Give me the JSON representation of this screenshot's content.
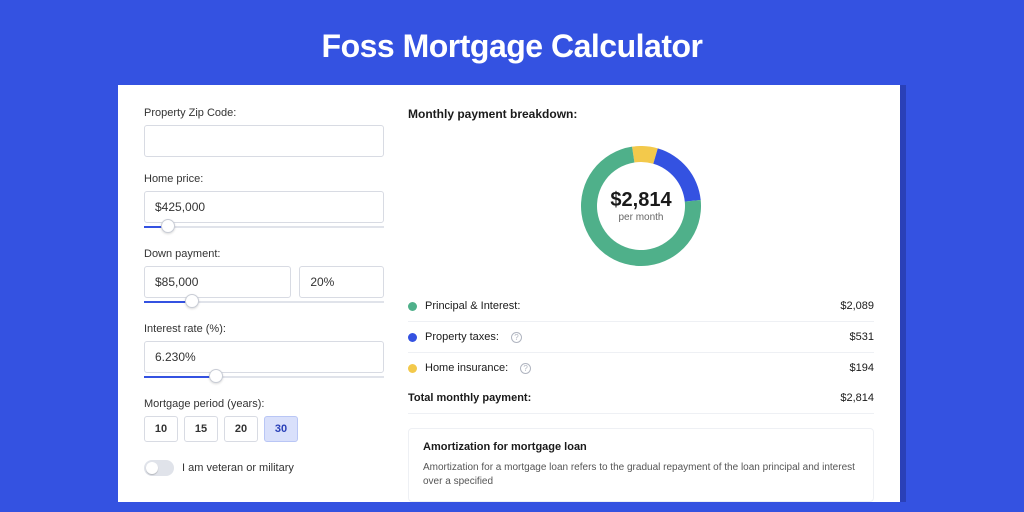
{
  "page": {
    "title": "Foss Mortgage Calculator",
    "background_color": "#3452e1",
    "shadow_color": "#2a40b8",
    "card_color": "#ffffff"
  },
  "form": {
    "zip_label": "Property Zip Code:",
    "zip_value": "",
    "home_price_label": "Home price:",
    "home_price_value": "$425,000",
    "home_price_slider_pct": 10,
    "down_payment_label": "Down payment:",
    "down_payment_value": "$85,000",
    "down_payment_pct": "20%",
    "down_payment_slider_pct": 20,
    "interest_label": "Interest rate (%):",
    "interest_value": "6.230%",
    "interest_slider_pct": 30,
    "period_label": "Mortgage period (years):",
    "periods": [
      "10",
      "15",
      "20",
      "30"
    ],
    "period_selected_index": 3,
    "veteran_label": "I am veteran or military",
    "veteran_on": false
  },
  "breakdown": {
    "title": "Monthly payment breakdown:",
    "center_amount": "$2,814",
    "center_sub": "per month",
    "rows": [
      {
        "label": "Principal & Interest:",
        "value": "$2,089",
        "color": "#4fb08a",
        "info": false
      },
      {
        "label": "Property taxes:",
        "value": "$531",
        "color": "#3452e1",
        "info": true
      },
      {
        "label": "Home insurance:",
        "value": "$194",
        "color": "#f3c94b",
        "info": true
      }
    ],
    "total_label": "Total monthly payment:",
    "total_value": "$2,814",
    "donut": {
      "size": 120,
      "ring_width": 16,
      "segments": [
        {
          "color": "#f3c94b",
          "fraction": 0.069
        },
        {
          "color": "#3452e1",
          "fraction": 0.189
        },
        {
          "color": "#4fb08a",
          "fraction": 0.742
        }
      ]
    }
  },
  "amortization": {
    "title": "Amortization for mortgage loan",
    "text": "Amortization for a mortgage loan refers to the gradual repayment of the loan principal and interest over a specified"
  }
}
